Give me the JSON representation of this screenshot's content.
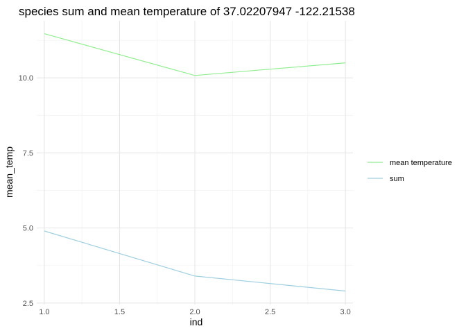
{
  "chart_data": {
    "type": "line",
    "title": "species sum and mean temperature of 37.02207947 -122.21538",
    "xlabel": "ind",
    "ylabel": "mean_temp",
    "xlim": [
      0.95,
      3.05
    ],
    "ylim": [
      2.45,
      11.9
    ],
    "x_ticks": [
      1.0,
      1.5,
      2.0,
      2.5,
      3.0
    ],
    "x_tick_labels": [
      "1.0",
      "1.5",
      "2.0",
      "2.5",
      "3.0"
    ],
    "y_ticks": [
      2.5,
      5.0,
      7.5,
      10.0
    ],
    "y_tick_labels": [
      "2.5",
      "5.0",
      "7.5",
      "10.0"
    ],
    "grid": true,
    "legend_position": "right",
    "series": [
      {
        "name": "mean temperature",
        "color": "#90ee90",
        "x": [
          1,
          2,
          3
        ],
        "y": [
          11.47,
          10.08,
          10.5
        ]
      },
      {
        "name": "sum",
        "color": "#9ecfe0",
        "x": [
          1,
          2,
          3
        ],
        "y": [
          4.9,
          3.4,
          2.9
        ]
      }
    ]
  }
}
